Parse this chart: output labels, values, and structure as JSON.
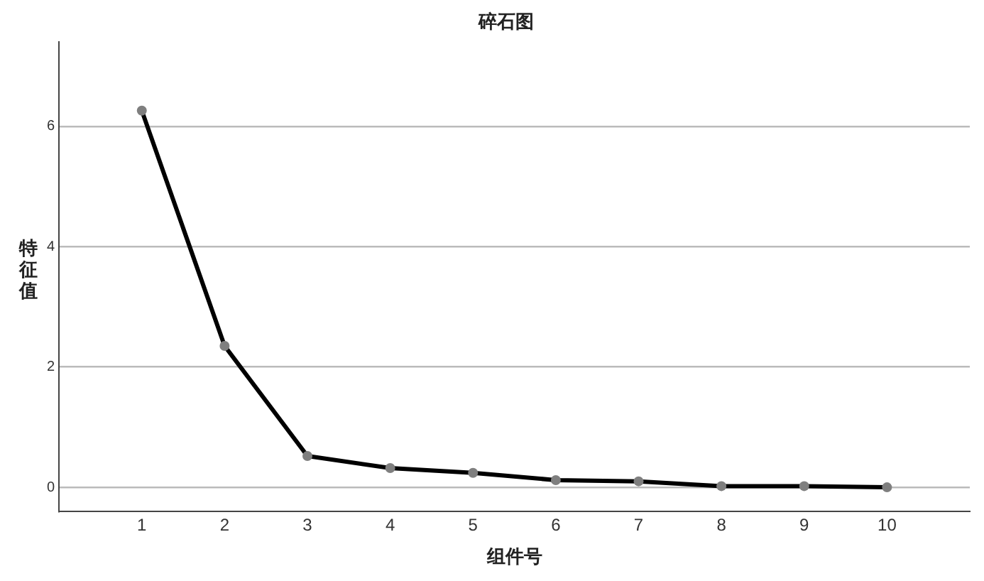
{
  "chart_data": {
    "type": "line",
    "title": "碎石图",
    "xlabel": "组件号",
    "ylabel": "特征值",
    "x": [
      1,
      2,
      3,
      4,
      5,
      6,
      7,
      8,
      9,
      10
    ],
    "series": [
      {
        "color": "#000000",
        "values": [
          6.26,
          2.35,
          0.52,
          0.32,
          0.24,
          0.12,
          0.1,
          0.02,
          0.02,
          0
        ]
      }
    ],
    "xlim": [
      0,
      11
    ],
    "xticks": [
      1,
      2,
      3,
      4,
      5,
      6,
      7,
      8,
      9,
      10
    ],
    "ylim": [
      -0.4,
      7.4
    ],
    "yticks": [
      0,
      2,
      4,
      6
    ],
    "grid": "y",
    "legend": false,
    "marker": "circle",
    "line_style": "solid"
  }
}
